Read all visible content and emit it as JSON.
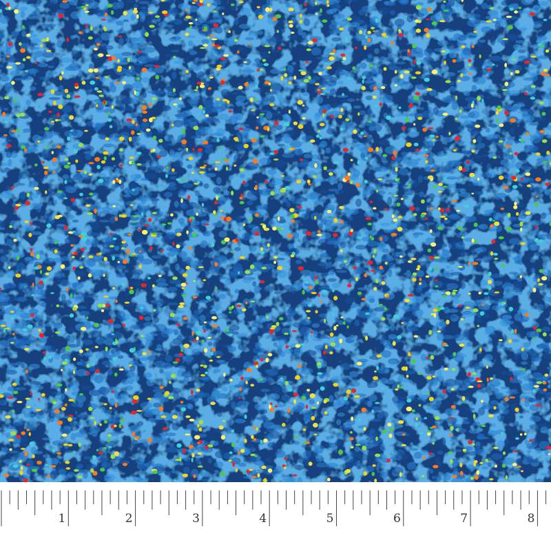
{
  "ruler": {
    "labels": [
      1,
      2,
      3,
      4,
      5,
      6,
      7,
      8
    ]
  }
}
